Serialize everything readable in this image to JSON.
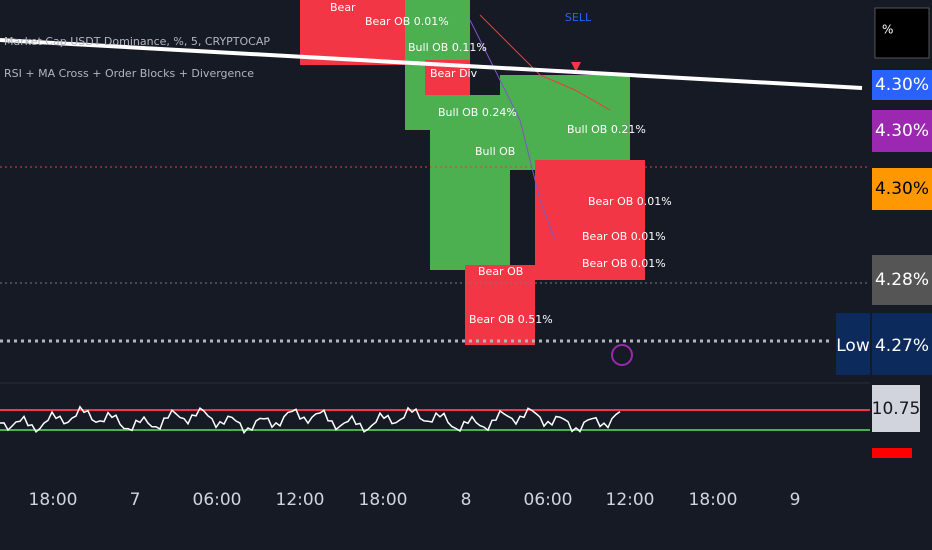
{
  "header": {
    "symbol": "Market Cap USDT Dominance, %, 5, CRYPTOCAP",
    "indicator": "RSI + MA Cross + Order Blocks + Divergence"
  },
  "signal": "SELL",
  "blocks": [
    "Bear",
    "Bear OB 0.01%",
    "Bull OB 0.11%",
    "Bear Div",
    "Bull OB 0.24%",
    "Bull OB 0.21%",
    "Bull OB",
    "Bear OB 0.01%",
    "Bear OB 0.01%",
    "Bear OB 0.01%",
    "Bear OB",
    "Bear OB 0.51%"
  ],
  "price_scale": {
    "unit": "%",
    "labels": [
      "4.30%",
      "4.30%",
      "4.30%",
      "4.28%",
      "4.27%"
    ],
    "low": "Low",
    "rsi": "10.75"
  },
  "time_axis": [
    "18:00",
    "7",
    "06:00",
    "12:00",
    "18:00",
    "8",
    "06:00",
    "12:00",
    "18:00",
    "9"
  ]
}
